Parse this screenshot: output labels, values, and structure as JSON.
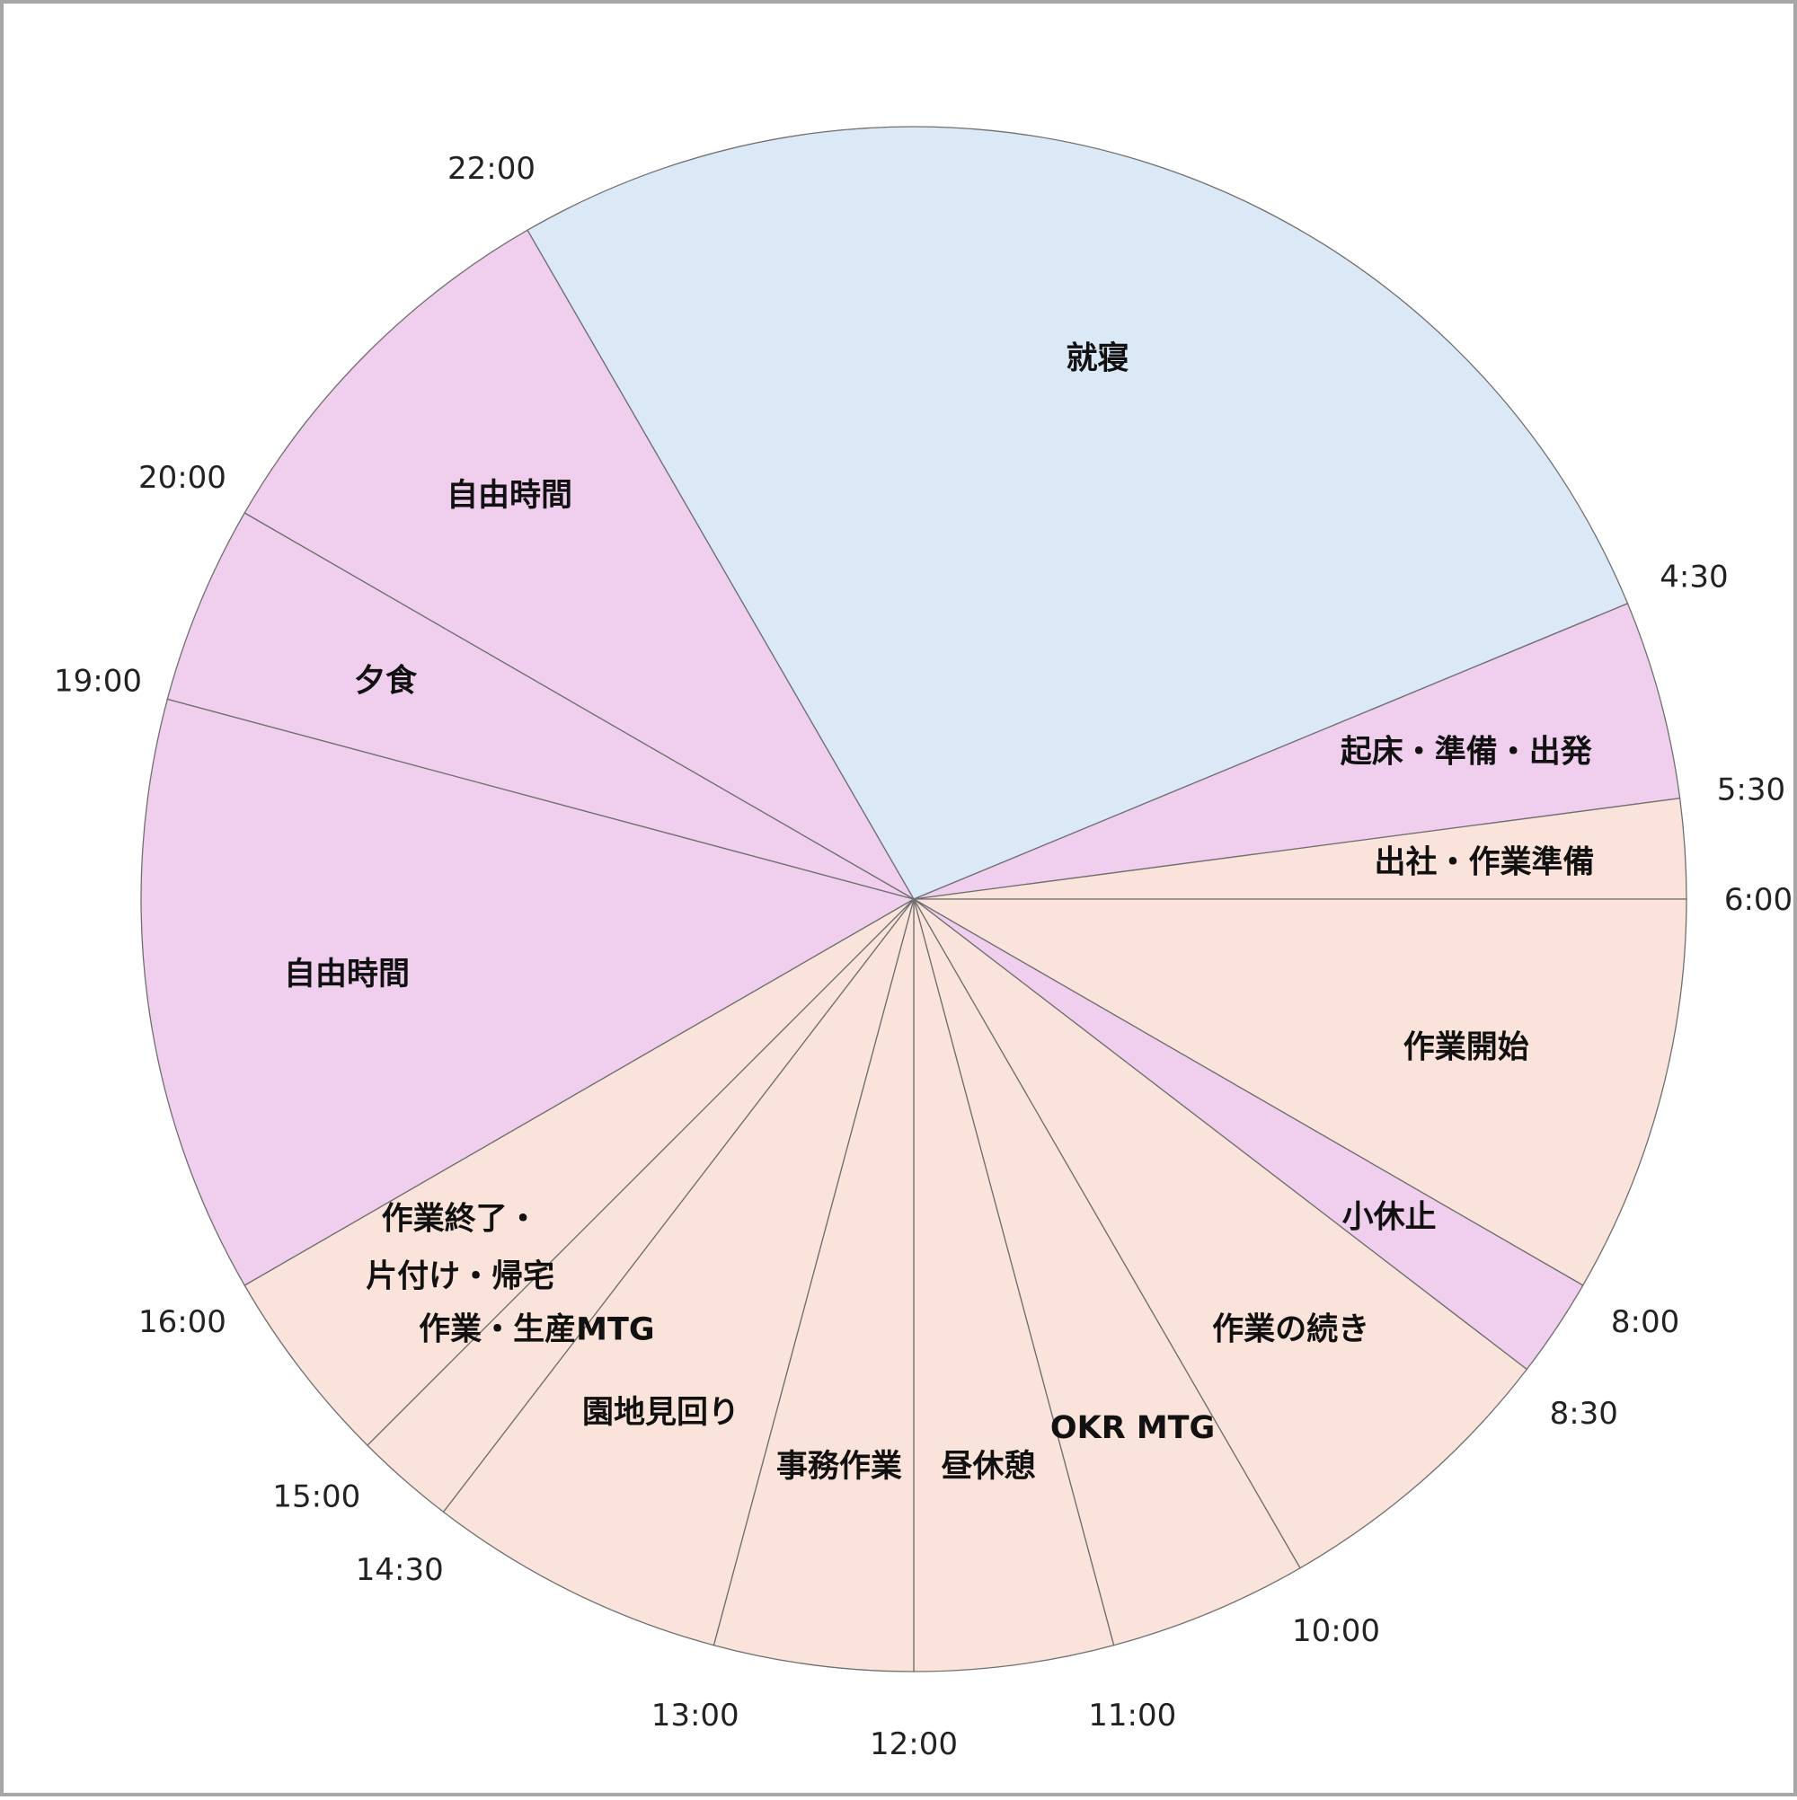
{
  "chart_data": {
    "type": "pie",
    "title": "",
    "unit": "hours",
    "start_time": "22:00",
    "colors": {
      "sleep": "#dbe9f6",
      "private": "#efcfed",
      "work": "#fae3da",
      "border": "#6f6f6f"
    },
    "segments": [
      {
        "label": "就寝",
        "start": "22:00",
        "end": "4:30",
        "hours": 6.5,
        "category": "sleep"
      },
      {
        "label": "起床・準備・出発",
        "start": "4:30",
        "end": "5:30",
        "hours": 1,
        "category": "private"
      },
      {
        "label": "出社・作業準備",
        "start": "5:30",
        "end": "6:00",
        "hours": 0.5,
        "category": "work"
      },
      {
        "label": "作業開始",
        "start": "6:00",
        "end": "8:00",
        "hours": 2,
        "category": "work"
      },
      {
        "label": "小休止",
        "start": "8:00",
        "end": "8:30",
        "hours": 0.5,
        "category": "private"
      },
      {
        "label": "作業の続き",
        "start": "8:30",
        "end": "10:00",
        "hours": 1.5,
        "category": "work"
      },
      {
        "label": "OKR MTG",
        "start": "10:00",
        "end": "11:00",
        "hours": 1,
        "category": "work"
      },
      {
        "label": "昼休憩",
        "start": "11:00",
        "end": "12:00",
        "hours": 1,
        "category": "work"
      },
      {
        "label": "事務作業",
        "start": "12:00",
        "end": "13:00",
        "hours": 1,
        "category": "work"
      },
      {
        "label": "園地見回り",
        "start": "13:00",
        "end": "14:30",
        "hours": 1.5,
        "category": "work"
      },
      {
        "label": "作業・生産MTG",
        "start": "14:30",
        "end": "15:00",
        "hours": 0.5,
        "category": "work"
      },
      {
        "label": [
          "作業終了・",
          "片付け・帰宅"
        ],
        "start": "15:00",
        "end": "16:00",
        "hours": 1,
        "category": "work"
      },
      {
        "label": "自由時間",
        "start": "16:00",
        "end": "19:00",
        "hours": 3,
        "category": "private"
      },
      {
        "label": "夕食",
        "start": "19:00",
        "end": "20:00",
        "hours": 1,
        "category": "private"
      },
      {
        "label": "自由時間",
        "start": "20:00",
        "end": "22:00",
        "hours": 2,
        "category": "private"
      }
    ],
    "time_labels": [
      "22:00",
      "4:30",
      "5:30",
      "6:00",
      "8:00",
      "8:30",
      "10:00",
      "11:00",
      "12:00",
      "13:00",
      "14:30",
      "15:00",
      "16:00",
      "19:00",
      "20:00"
    ]
  }
}
